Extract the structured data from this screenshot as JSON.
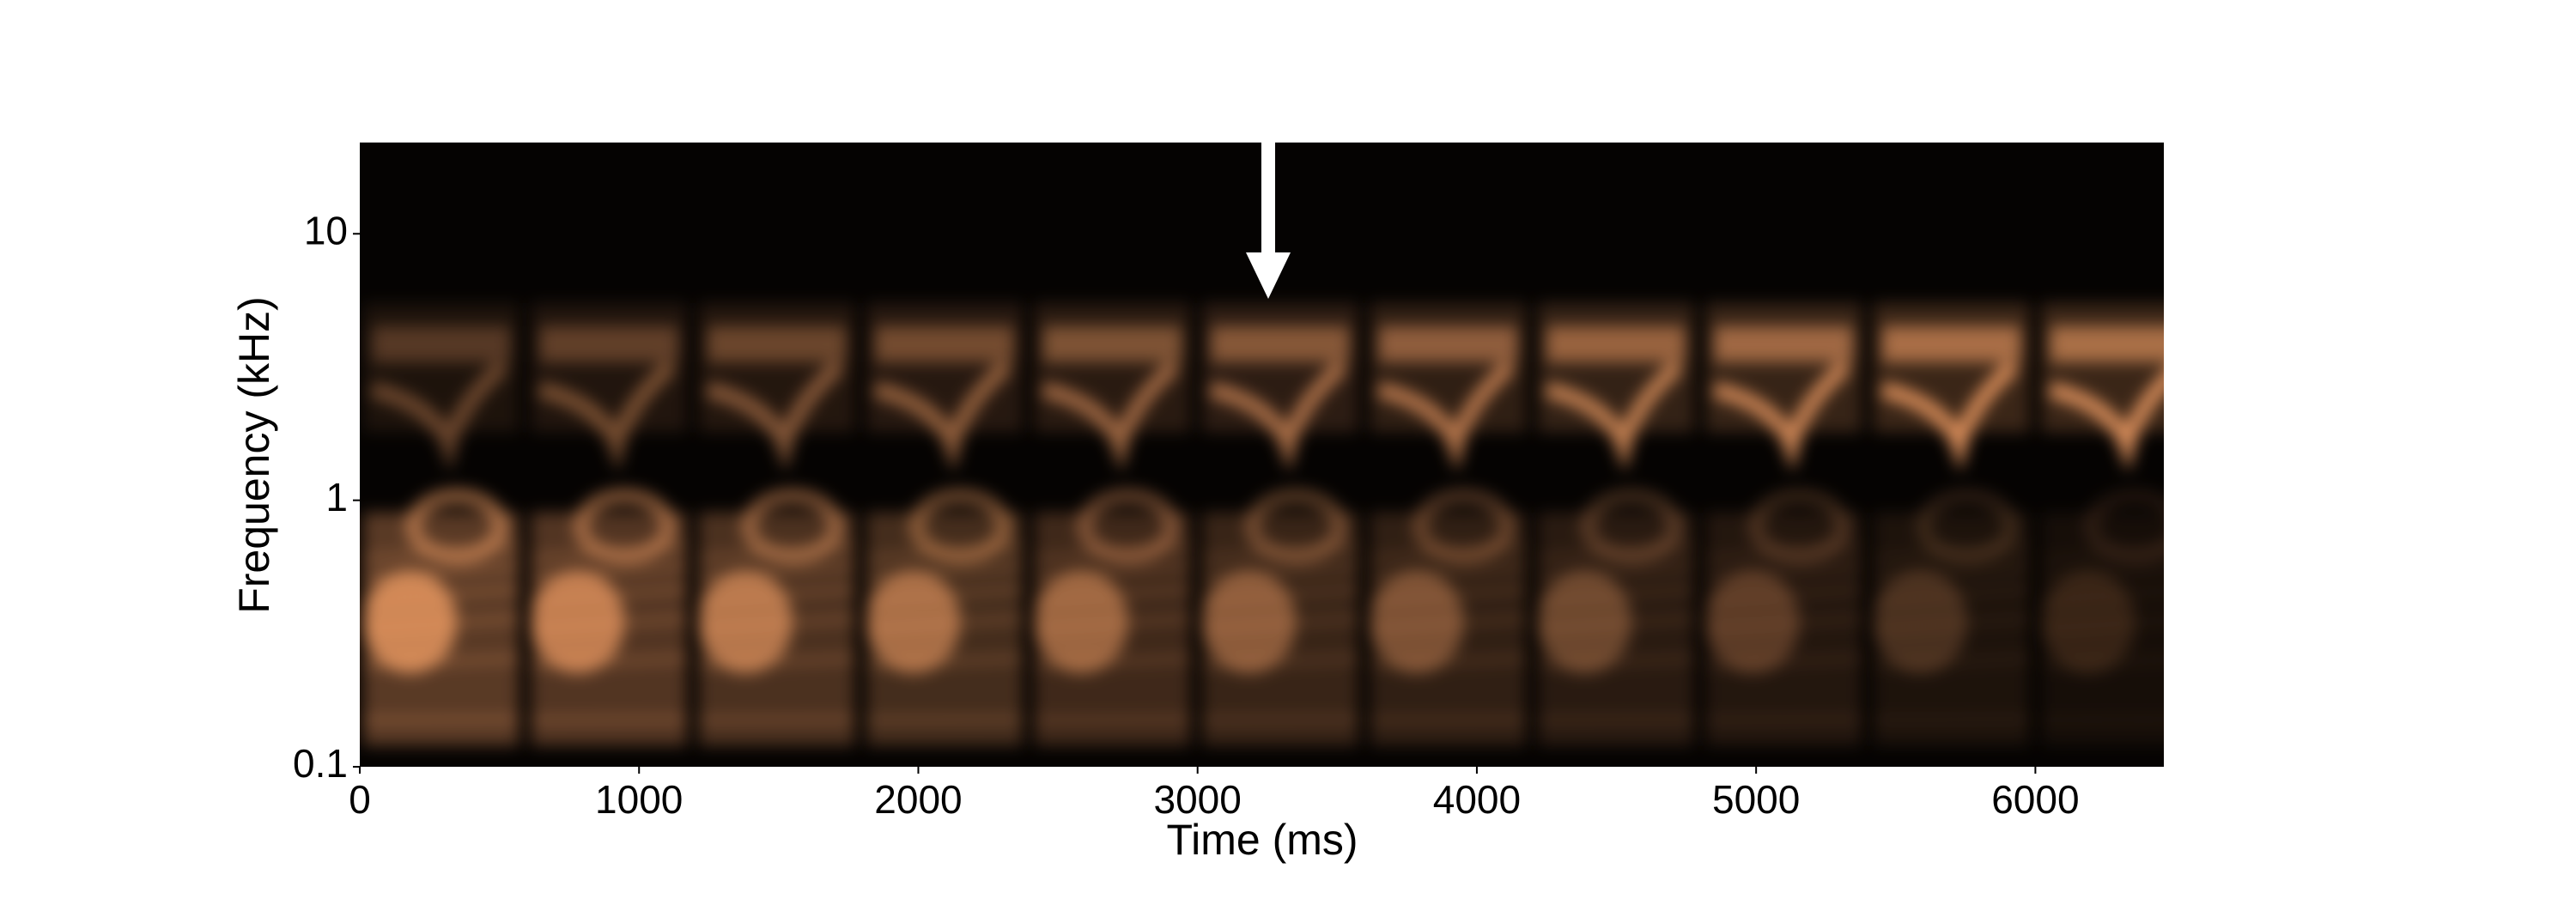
{
  "chart_data": {
    "type": "spectrogram",
    "xlabel": "Time (ms)",
    "ylabel": "Frequency (kHz)",
    "xlim": [
      0,
      6460
    ],
    "xticks": [
      0,
      1000,
      2000,
      3000,
      4000,
      5000,
      6000
    ],
    "ylim": [
      0.1,
      22
    ],
    "yticks": [
      0.1,
      1,
      10
    ],
    "yscale": "log",
    "color": "#f5a066"
  }
}
